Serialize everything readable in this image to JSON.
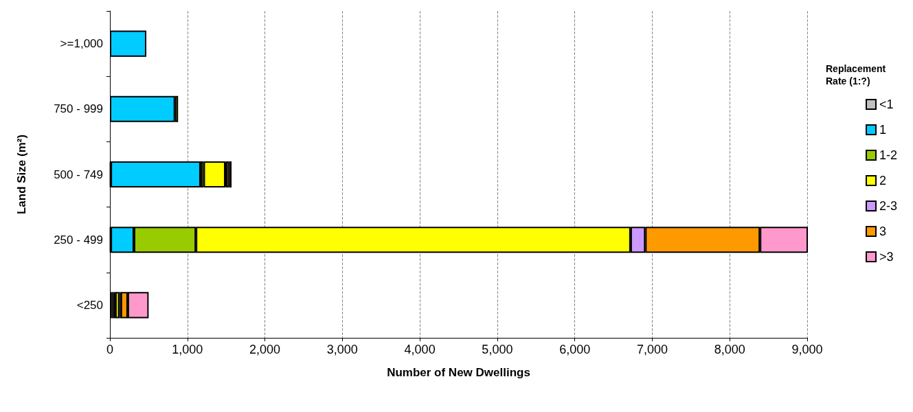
{
  "chart_data": {
    "type": "bar",
    "orientation": "horizontal",
    "stacked": true,
    "xlabel": "Number of New Dwellings",
    "ylabel": "Land Size (m²)",
    "legend_title": "Replacement Rate (1:?)",
    "categories": [
      ">=1,000",
      "750 - 999",
      "500 - 749",
      "250 - 499",
      "<250"
    ],
    "series": [
      {
        "name": "<1",
        "color": "#c0c0c0",
        "values": [
          null,
          null,
          10,
          10,
          20
        ]
      },
      {
        "name": "1",
        "color": "#00ccff",
        "values": [
          470,
          840,
          1160,
          300,
          20
        ]
      },
      {
        "name": "1-2",
        "color": "#99cc00",
        "values": [
          null,
          40,
          40,
          800,
          30
        ]
      },
      {
        "name": "2",
        "color": "#ffff00",
        "values": [
          null,
          null,
          280,
          5610,
          50
        ]
      },
      {
        "name": "2-3",
        "color": "#cc99ff",
        "values": [
          null,
          null,
          10,
          190,
          20
        ]
      },
      {
        "name": "3",
        "color": "#ff9900",
        "values": [
          null,
          null,
          40,
          1480,
          90
        ]
      },
      {
        "name": ">3",
        "color": "#ff99cc",
        "values": [
          null,
          null,
          30,
          620,
          270
        ]
      }
    ],
    "xlim": [
      0,
      9000
    ],
    "xticks": [
      0,
      {
        "value": 1000,
        "label": "1,000"
      },
      {
        "value": 2000,
        "label": "2,000"
      },
      {
        "value": 3000,
        "label": "3,000"
      },
      {
        "value": 4000,
        "label": "4,000"
      },
      {
        "value": 5000,
        "label": "5,000"
      },
      {
        "value": 6000,
        "label": "6,000"
      },
      {
        "value": 7000,
        "label": "7,000"
      },
      {
        "value": 8000,
        "label": "8,000"
      },
      {
        "value": 9000,
        "label": "9,000"
      }
    ],
    "grid": "x",
    "legend": "right"
  }
}
